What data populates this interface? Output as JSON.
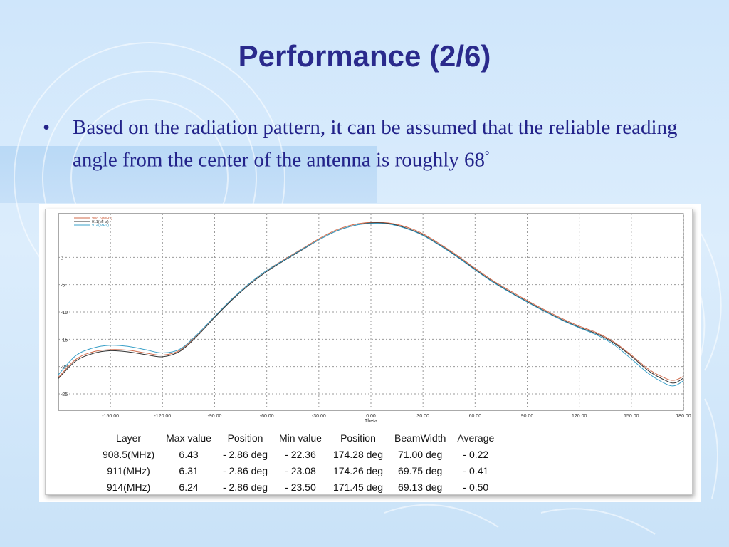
{
  "slide": {
    "title": "Performance (2/6)",
    "bullet": "Based on the radiation pattern, it can be assumed that the reliable reading angle from the center of the antenna is roughly 68",
    "bullet_symbol": "•",
    "degree_symbol": "°"
  },
  "colors": {
    "title": "#2a2a8c",
    "grid": "#9a9a9a"
  },
  "chart_data": {
    "type": "line",
    "xlabel": "Theta",
    "ylabel": "",
    "title": "",
    "xlim": [
      -180,
      180
    ],
    "ylim": [
      -28,
      8
    ],
    "grid": true,
    "legend_position": "top-left",
    "x_tick_labels": [
      "-150.00",
      "-120.00",
      "-90.00",
      "-60.00",
      "-30.00",
      "0.00",
      "30.00",
      "60.00",
      "90.00",
      "120.00",
      "150.00",
      "180.00"
    ],
    "x_tick_values": [
      -150,
      -120,
      -90,
      -60,
      -30,
      0,
      30,
      60,
      90,
      120,
      150,
      180
    ],
    "y_tick_labels": [
      "0",
      "-5",
      "-10",
      "-15",
      "-20",
      "-25"
    ],
    "y_tick_values": [
      0,
      -5,
      -10,
      -15,
      -20,
      -25
    ],
    "x": [
      -180,
      -170,
      -160,
      -150,
      -140,
      -130,
      -120,
      -110,
      -100,
      -90,
      -80,
      -70,
      -60,
      -50,
      -40,
      -30,
      -20,
      -10,
      0,
      10,
      20,
      30,
      40,
      50,
      60,
      70,
      80,
      90,
      100,
      110,
      120,
      130,
      140,
      150,
      160,
      170,
      175,
      180
    ],
    "series": [
      {
        "name": "908.5(MHz)",
        "color": "#d06a4a",
        "values": [
          -22,
          -18.7,
          -17.3,
          -16.9,
          -17.0,
          -17.5,
          -17.9,
          -17.0,
          -14.2,
          -10.8,
          -7.6,
          -4.8,
          -2.4,
          -0.4,
          1.5,
          3.4,
          5.0,
          6.0,
          6.4,
          6.3,
          5.6,
          4.3,
          2.4,
          0.3,
          -2.0,
          -4.2,
          -6.1,
          -7.9,
          -9.6,
          -11.2,
          -12.6,
          -13.8,
          -15.5,
          -17.9,
          -20.5,
          -22.2,
          -22.5,
          -21.8
        ]
      },
      {
        "name": "911(MHz)",
        "color": "#333333",
        "values": [
          -22.2,
          -19.0,
          -17.6,
          -17.1,
          -17.3,
          -17.8,
          -18.2,
          -17.2,
          -14.4,
          -11.0,
          -7.8,
          -5.0,
          -2.6,
          -0.6,
          1.3,
          3.2,
          4.8,
          5.8,
          6.3,
          6.2,
          5.4,
          4.1,
          2.2,
          0.1,
          -2.2,
          -4.4,
          -6.3,
          -8.1,
          -9.8,
          -11.4,
          -12.8,
          -14.0,
          -15.7,
          -18.1,
          -20.8,
          -22.6,
          -23.0,
          -22.1
        ]
      },
      {
        "name": "914(MHz)",
        "color": "#3aa0c8",
        "values": [
          -21.5,
          -18.0,
          -16.6,
          -16.1,
          -16.3,
          -16.9,
          -17.5,
          -16.8,
          -14.1,
          -10.8,
          -7.6,
          -4.8,
          -2.4,
          -0.5,
          1.4,
          3.2,
          4.8,
          5.8,
          6.2,
          6.1,
          5.3,
          4.0,
          2.1,
          0.0,
          -2.3,
          -4.5,
          -6.4,
          -8.2,
          -9.9,
          -11.5,
          -12.9,
          -14.2,
          -16.0,
          -18.6,
          -21.3,
          -23.2,
          -23.5,
          -22.6
        ]
      }
    ]
  },
  "stats_table": {
    "headers": [
      "Layer",
      "Max value",
      "Position",
      "Min value",
      "Position",
      "BeamWidth",
      "Average"
    ],
    "rows": [
      [
        "908.5(MHz)",
        "6.43",
        "- 2.86 deg",
        "- 22.36",
        "174.28 deg",
        "71.00 deg",
        "- 0.22"
      ],
      [
        "911(MHz)",
        "6.31",
        "- 2.86 deg",
        "- 23.08",
        "174.26 deg",
        "69.75 deg",
        "- 0.41"
      ],
      [
        "914(MHz)",
        "6.24",
        "- 2.86 deg",
        "- 23.50",
        "171.45 deg",
        "69.13 deg",
        "- 0.50"
      ]
    ]
  }
}
